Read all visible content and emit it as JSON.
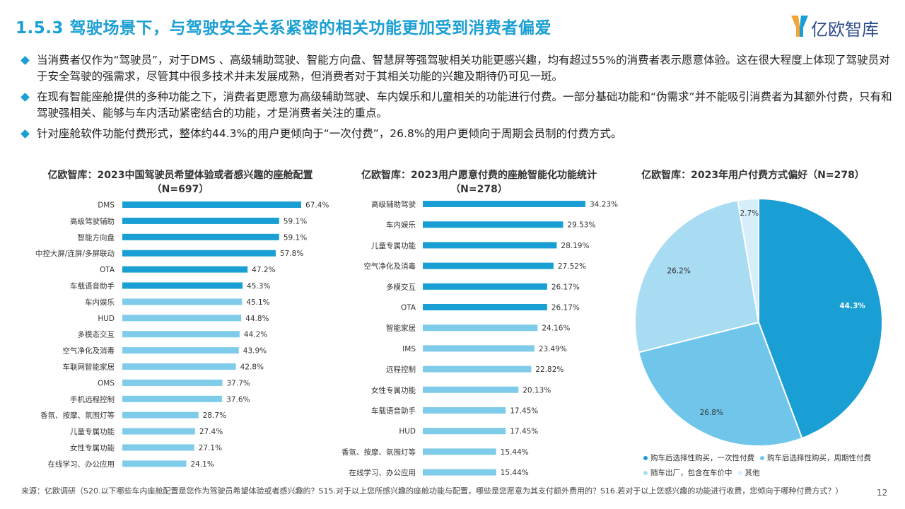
{
  "title": "1.5.3 驾驶场景下，与驾驶安全关系紧密的相关功能更加受到消费者偏爱",
  "logo": {
    "text": "亿欧智库"
  },
  "bullets": [
    "当消费者仅作为“驾驶员”，对于DMS 、高级辅助驾驶、智能方向盘、智慧屏等强驾驶相关功能更感兴趣，均有超过55%的消费者表示愿意体验。这在很大程度上体现了驾驶员对于安全驾驶的强需求，尽管其中很多技术并未发展成熟，但消费者对于其相关功能的兴趣及期待仍可见一斑。",
    "在现有智能座舱提供的多种功能之下，消费者更愿意为高级辅助驾驶、车内娱乐和儿童相关的功能进行付费。一部分基础功能和“伪需求”并不能吸引消费者为其额外付费，只有和驾驶强相关、能够与车内活动紧密结合的功能，才是消费者关注的重点。",
    "针对座舱软件功能付费形式，整体约44.3%的用户更倾向于“一次付费”，26.8%的用户更倾向于周期会员制的付费方式。"
  ],
  "chart_data": [
    {
      "type": "bar",
      "orientation": "horizontal",
      "title": "亿欧智库：2023中国驾驶员希望体验或者感兴趣的座舱配置（N=697）",
      "categories": [
        "DMS",
        "高级驾驶辅助",
        "智能方向盘",
        "中控大屏/连屏/多屏联动",
        "OTA",
        "车载语音助手",
        "车内娱乐",
        "HUD",
        "多模态交互",
        "空气净化及消毒",
        "车联网智能家居",
        "OMS",
        "手机远程控制",
        "香氛、按摩、氛围灯等",
        "儿童专属功能",
        "女性专属功能",
        "在线学习、办公应用"
      ],
      "values": [
        67.4,
        59.1,
        59.1,
        57.8,
        47.2,
        45.3,
        45.1,
        44.8,
        44.2,
        43.9,
        42.8,
        37.7,
        37.6,
        28.7,
        27.4,
        27.1,
        24.1
      ],
      "value_labels": [
        "67.4%",
        "59.1%",
        "59.1%",
        "57.8%",
        "47.2%",
        "45.3%",
        "45.1%",
        "44.8%",
        "44.2%",
        "43.9%",
        "42.8%",
        "37.7%",
        "37.6%",
        "28.7%",
        "27.4%",
        "27.1%",
        "24.1%"
      ],
      "highlight_count": 6,
      "colors": {
        "dark": "#1a9fd4",
        "light": "#7fcbea"
      }
    },
    {
      "type": "bar",
      "orientation": "horizontal",
      "title": "亿欧智库：2023用户愿意付费的座舱智能化功能统计（N=278）",
      "categories": [
        "高级辅助驾驶",
        "车内娱乐",
        "儿童专属功能",
        "空气净化及消毒",
        "多模交互",
        "OTA",
        "智能家居",
        "IMS",
        "远程控制",
        "女性专属功能",
        "车载语音助手",
        "HUD",
        "香氛、按摩、氛围灯等",
        "在线学习、办公应用"
      ],
      "values": [
        34.23,
        29.53,
        28.19,
        27.52,
        26.17,
        26.17,
        24.16,
        23.49,
        22.82,
        20.13,
        17.45,
        17.45,
        15.44,
        15.44
      ],
      "value_labels": [
        "34.23%",
        "29.53%",
        "28.19%",
        "27.52%",
        "26.17%",
        "26.17%",
        "24.16%",
        "23.49%",
        "22.82%",
        "20.13%",
        "17.45%",
        "17.45%",
        "15.44%",
        "15.44%"
      ],
      "highlight_count": 6,
      "colors": {
        "dark": "#1a9fd4",
        "light": "#7fcbea"
      }
    },
    {
      "type": "pie",
      "title": "亿欧智库：2023年用户付费方式偏好（N=278）",
      "categories": [
        "购车后选择性购买，一次性付费",
        "购车后选择性购买，周期性付费",
        "随车出厂，包含在车价中",
        "其他"
      ],
      "values": [
        44.3,
        26.8,
        26.2,
        2.7
      ],
      "value_labels": [
        "44.3%",
        "26.8%",
        "26.2%",
        "2.7%"
      ],
      "colors": [
        "#1a9fd4",
        "#6fc6ea",
        "#a8dcf2",
        "#d6eefa"
      ]
    }
  ],
  "source": "来源：亿欧调研（S20.以下哪些车内座舱配置是您作为驾驶员希望体验或者感兴趣的？S15.对于以上您所感兴趣的座舱功能与配置，哪些是您愿意为其支付额外费用的？S16.若对于以上您感兴趣的功能进行收费，您倾向于哪种付费方式？）",
  "page_number": "12"
}
